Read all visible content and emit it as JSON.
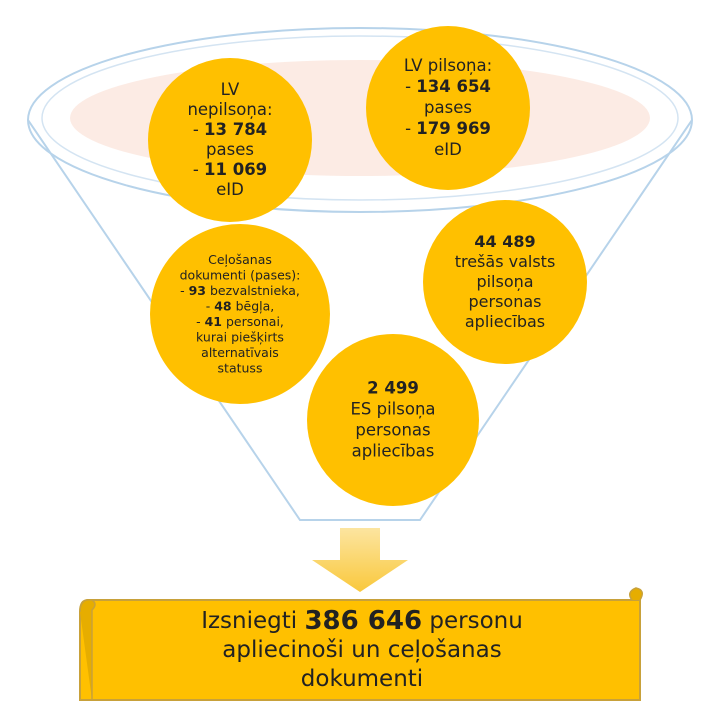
{
  "circles": [
    {
      "lines": [
        [
          {
            "text": "LV"
          }
        ],
        [
          {
            "text": "nepilsoņa:"
          }
        ],
        [
          {
            "text": "- "
          },
          {
            "text": "13 784",
            "bold": true
          }
        ],
        [
          {
            "text": "pases"
          }
        ],
        [
          {
            "text": "- "
          },
          {
            "text": "11 069",
            "bold": true
          }
        ],
        [
          {
            "text": "eID"
          }
        ]
      ]
    },
    {
      "lines": [
        [
          {
            "text": "LV pilsoņa:"
          }
        ],
        [
          {
            "text": "- "
          },
          {
            "text": "134 654",
            "bold": true
          }
        ],
        [
          {
            "text": "pases"
          }
        ],
        [
          {
            "text": "- "
          },
          {
            "text": "179 969",
            "bold": true
          }
        ],
        [
          {
            "text": "eID"
          }
        ]
      ]
    },
    {
      "lines": [
        [
          {
            "text": "Ceļošanas"
          }
        ],
        [
          {
            "text": "dokumenti (pases):"
          }
        ],
        [
          {
            "text": "- "
          },
          {
            "text": "93",
            "bold": true
          },
          {
            "text": " bezvalstnieka,"
          }
        ],
        [
          {
            "text": "- "
          },
          {
            "text": "48",
            "bold": true
          },
          {
            "text": " bēgļa,"
          }
        ],
        [
          {
            "text": "- "
          },
          {
            "text": "41",
            "bold": true
          },
          {
            "text": " personai,"
          }
        ],
        [
          {
            "text": "kurai piešķirts"
          }
        ],
        [
          {
            "text": "alternatīvais"
          }
        ],
        [
          {
            "text": "statuss"
          }
        ]
      ]
    },
    {
      "lines": [
        [
          {
            "text": "44 489",
            "bold": true
          }
        ],
        [
          {
            "text": "trešās valsts"
          }
        ],
        [
          {
            "text": "pilsoņa"
          }
        ],
        [
          {
            "text": "personas"
          }
        ],
        [
          {
            "text": "apliecības"
          }
        ]
      ]
    },
    {
      "lines": [
        [
          {
            "text": "2 499",
            "bold": true
          }
        ],
        [
          {
            "text": "ES pilsoņa"
          }
        ],
        [
          {
            "text": "personas"
          }
        ],
        [
          {
            "text": "apliecības"
          }
        ]
      ]
    }
  ],
  "banner": {
    "lines": [
      [
        {
          "text": "Izsniegti "
        },
        {
          "text": "386 646",
          "bold": true
        },
        {
          "text": " personu"
        }
      ],
      [
        {
          "text": "apliecinoši un ceļošanas"
        }
      ],
      [
        {
          "text": "dokumenti"
        }
      ]
    ]
  }
}
